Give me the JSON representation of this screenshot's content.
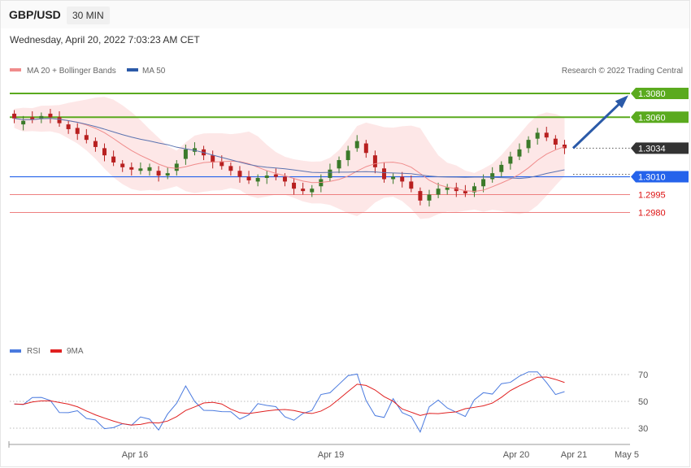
{
  "header": {
    "symbol": "GBP/USD",
    "timeframe": "30 MIN"
  },
  "timestamp": "Wednesday, April 20, 2022 7:03:23 AM CET",
  "legend": {
    "bollinger": "MA 20 + Bollinger Bands",
    "ma50": "MA 50",
    "credit": "Research © 2022 Trading Central",
    "rsi": "RSI",
    "rsi_ma": "9MA"
  },
  "colors": {
    "up_candle": "#3b7a2a",
    "down_candle": "#b82020",
    "bollinger_fill": "#fde3e3",
    "ma20": "#f08c8c",
    "ma50": "#5b73b0",
    "resistance": "#5aaa1e",
    "pivot": "#2563eb",
    "support": "#ee8080",
    "arrow": "#2b5aa8",
    "rsi": "#4a7adf",
    "rsi_ma": "#e02020",
    "last_price_box": "#333333"
  },
  "chart_data": {
    "type": "candlestick",
    "x_tick_labels": [
      "Apr 16",
      "Apr 19",
      "Apr 20",
      "Apr 21",
      "May 5"
    ],
    "price_levels": [
      {
        "label": "1.3080",
        "value": 1.308,
        "kind": "resistance"
      },
      {
        "label": "1.3060",
        "value": 1.306,
        "kind": "resistance"
      },
      {
        "label": "1.3034",
        "value": 1.3034,
        "kind": "last"
      },
      {
        "label": "1.3010",
        "value": 1.301,
        "kind": "pivot"
      },
      {
        "label": "1.2995",
        "value": 1.2995,
        "kind": "support"
      },
      {
        "label": "1.2980",
        "value": 1.298,
        "kind": "support"
      }
    ],
    "closes": [
      1.3059,
      1.3057,
      1.3058,
      1.3061,
      1.306,
      1.3055,
      1.305,
      1.3046,
      1.3041,
      1.3035,
      1.3028,
      1.3022,
      1.3018,
      1.3016,
      1.3017,
      1.3018,
      1.3011,
      1.3013,
      1.3021,
      1.3033,
      1.3034,
      1.3028,
      1.3022,
      1.3019,
      1.3015,
      1.301,
      1.3007,
      1.3009,
      1.3011,
      1.301,
      1.3006,
      1.3,
      1.2998,
      1.3,
      1.3008,
      1.3016,
      1.3024,
      1.3032,
      1.304,
      1.303,
      1.3018,
      1.3008,
      1.301,
      1.3006,
      1.3,
      1.299,
      1.2995,
      1.3,
      1.3001,
      1.2998,
      1.2996,
      1.3002,
      1.3008,
      1.3013,
      1.302,
      1.3027,
      1.3033,
      1.3041,
      1.3047,
      1.3043,
      1.3037,
      1.3034
    ],
    "opens_offset": [
      0.0004,
      -0.0003,
      0.0002,
      -0.0002,
      0.0003,
      0.0005,
      0.0004,
      0.0005,
      0.0004,
      0.0005,
      0.0006,
      0.0005,
      0.0003,
      0.0002,
      -0.0002,
      -0.0003,
      0.0004,
      -0.0002,
      -0.0006,
      -0.0008,
      -0.0003,
      0.0005,
      0.0006,
      0.0004,
      0.0004,
      0.0005,
      0.0003,
      -0.0003,
      -0.0002,
      0.0002,
      0.0004,
      0.0005,
      0.0002,
      -0.0003,
      -0.0006,
      -0.0007,
      -0.0007,
      -0.0008,
      -0.0006,
      0.0008,
      0.001,
      0.0009,
      -0.0002,
      0.0004,
      0.0006,
      0.0008,
      -0.0005,
      -0.0005,
      -0.0002,
      0.0003,
      0.0002,
      -0.0005,
      -0.0006,
      -0.0005,
      -0.0006,
      -0.0006,
      -0.0006,
      -0.0007,
      -0.0005,
      0.0004,
      0.0005,
      0.0003
    ],
    "y_range": [
      1.2978,
      1.3088
    ],
    "rsi": {
      "ticks": [
        "70",
        "50",
        "30"
      ],
      "tick_values": [
        70,
        50,
        30
      ],
      "range": [
        20,
        80
      ]
    }
  }
}
